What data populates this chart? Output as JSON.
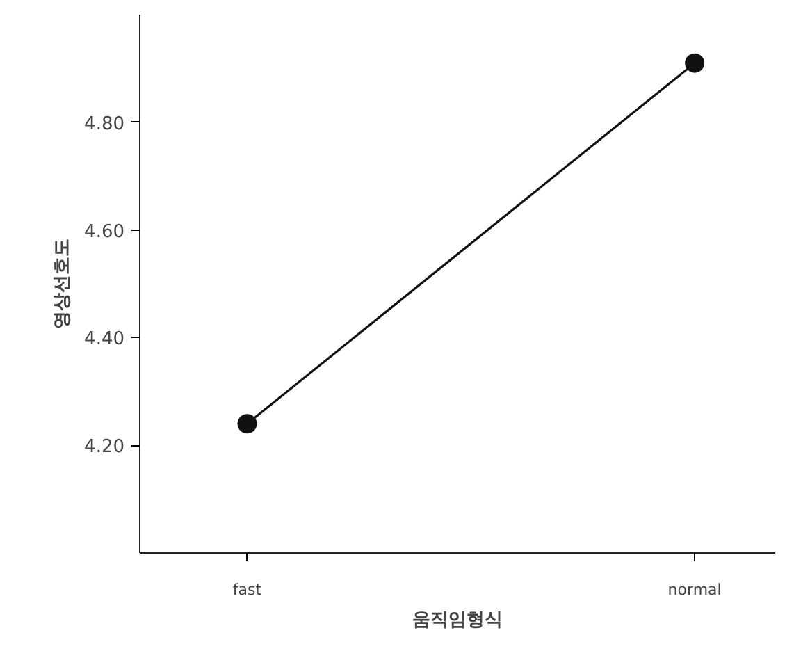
{
  "chart_data": {
    "type": "line",
    "xlabel": "움직임형식",
    "ylabel": "영상선호도",
    "categories": [
      "fast",
      "normal"
    ],
    "series": [
      {
        "color": "#111111",
        "values": [
          4.24,
          4.91
        ]
      }
    ],
    "ylim": [
      4.0,
      5.0
    ],
    "yticks": [
      {
        "value": 4.2,
        "label": "4.20"
      },
      {
        "value": 4.4,
        "label": "4.40"
      },
      {
        "value": 4.6,
        "label": "4.60"
      },
      {
        "value": 4.8,
        "label": "4.80"
      }
    ],
    "marker": "circle",
    "line_style": "solid",
    "grid": false
  }
}
